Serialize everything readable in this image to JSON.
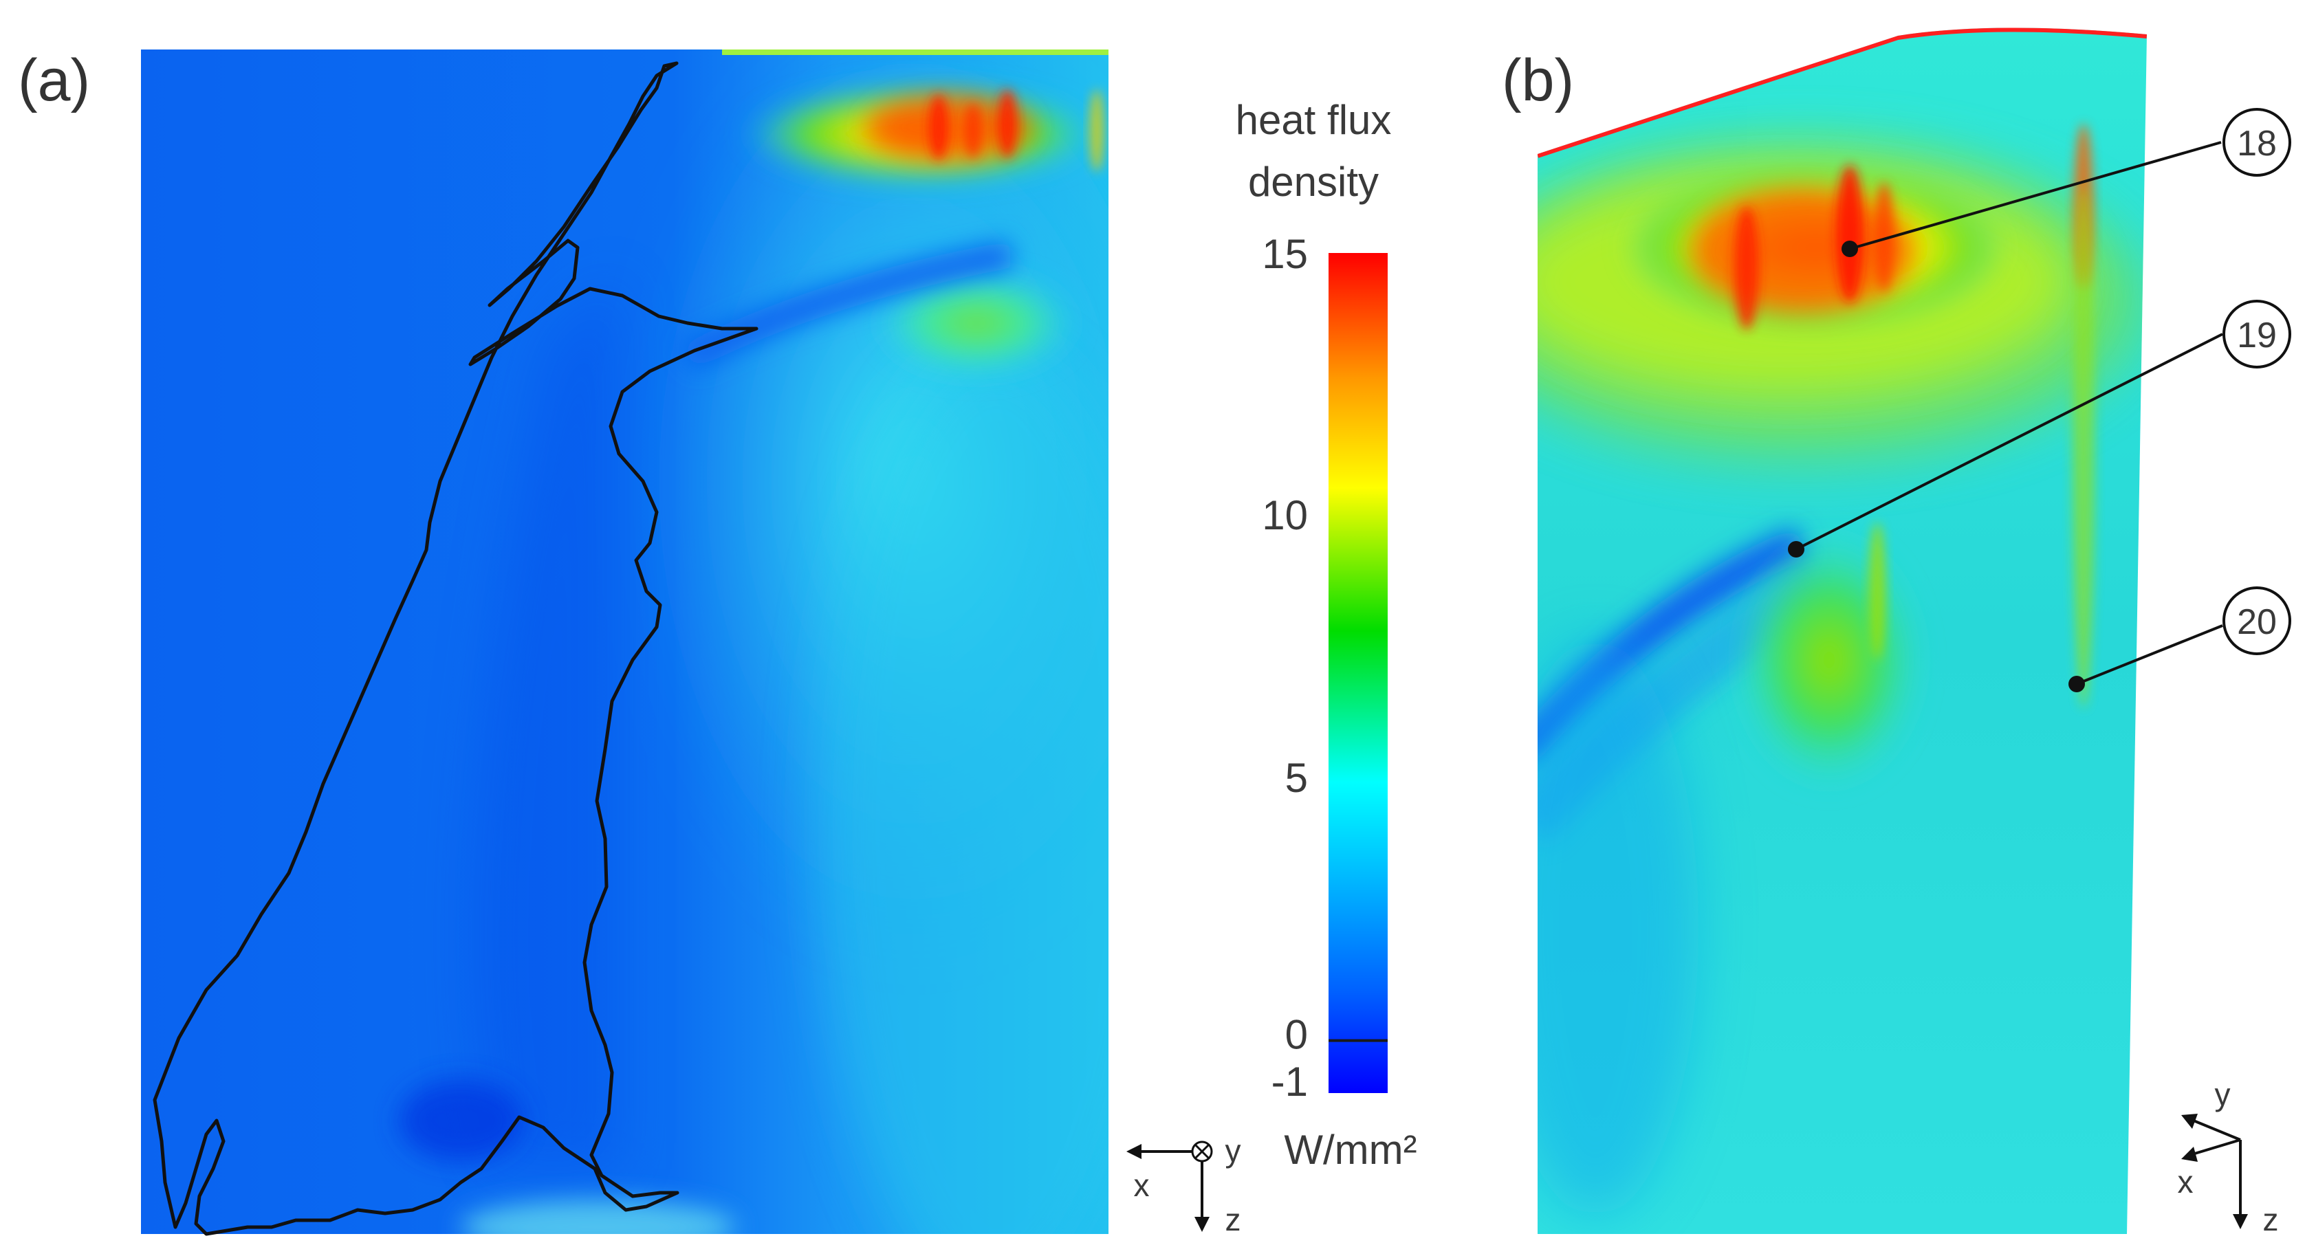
{
  "panel_a": {
    "label": "(a)",
    "axes": {
      "left": "x",
      "out_of_plane": "y",
      "down": "z"
    }
  },
  "panel_b": {
    "label": "(b)",
    "axes": {
      "up": "y",
      "left_diag": "x",
      "down": "z"
    },
    "callouts": [
      {
        "number": "18"
      },
      {
        "number": "19"
      },
      {
        "number": "20"
      }
    ]
  },
  "colorbar": {
    "title_line1": "heat flux",
    "title_line2": "density",
    "unit": "W/mm²",
    "range": [
      -1,
      15
    ],
    "ticks": [
      {
        "value": 15,
        "label": "15"
      },
      {
        "value": 10,
        "label": "10"
      },
      {
        "value": 5,
        "label": "5"
      },
      {
        "value": 0,
        "label": "0"
      },
      {
        "value": -1,
        "label": "-1"
      }
    ],
    "colors": [
      "#ff0000",
      "#ff7700",
      "#ffff00",
      "#00cc00",
      "#00ffff",
      "#0077ff",
      "#0000ff"
    ]
  }
}
